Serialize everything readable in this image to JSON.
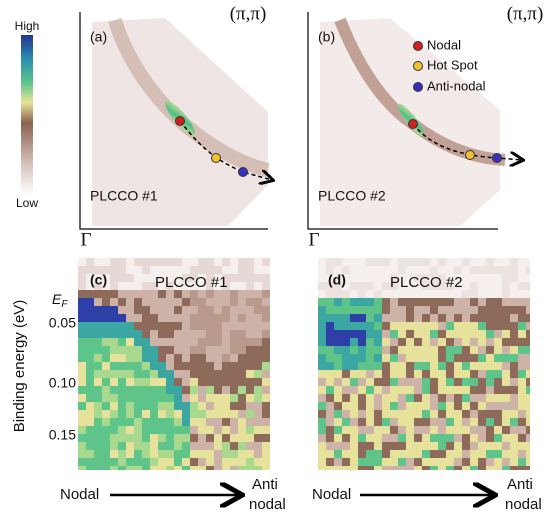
{
  "colorbar": {
    "high": "High",
    "low": "Low"
  },
  "panels": [
    {
      "label": "(a)",
      "corner": "(π,π)",
      "origin": "Γ",
      "sample": "PLCCO #1"
    },
    {
      "label": "(b)",
      "corner": "(π,π)",
      "origin": "Γ",
      "sample": "PLCCO #2"
    },
    {
      "label": "(c)",
      "sample": "PLCCO #1"
    },
    {
      "label": "(d)",
      "sample": "PLCCO #2"
    }
  ],
  "legend": [
    "Nodal",
    "Hot Spot",
    "Anti-nodal"
  ],
  "y_axis": {
    "label": "Binding energy (eV)",
    "ef": {
      "main": "E",
      "sub": "F"
    },
    "ticks": [
      "0.05",
      "0.10",
      "0.15"
    ]
  },
  "x_axis": [
    {
      "start": "Nodal",
      "end_1": "Anti",
      "end_2": "nodal"
    },
    {
      "start": "Nodal",
      "end_1": "Anti",
      "end_2": "nodal"
    }
  ]
}
